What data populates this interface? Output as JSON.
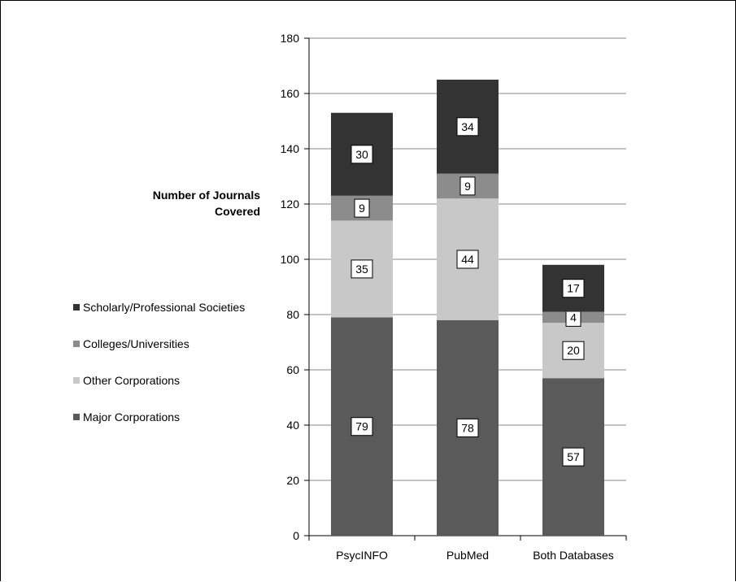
{
  "chart_data": {
    "type": "bar",
    "stacked": true,
    "categories": [
      "PsycINFO",
      "PubMed",
      "Both Databases"
    ],
    "series": [
      {
        "name": "Major Corporations",
        "values": [
          79,
          78,
          57
        ],
        "color": "#5a5a5a"
      },
      {
        "name": "Other Corporations",
        "values": [
          35,
          44,
          20
        ],
        "color": "#c8c8c8"
      },
      {
        "name": "Colleges/Universities",
        "values": [
          9,
          9,
          4
        ],
        "color": "#8c8c8c"
      },
      {
        "name": "Scholarly/Professional Societies",
        "values": [
          30,
          34,
          17
        ],
        "color": "#333333"
      }
    ],
    "ylabel": "Number of Journals Covered",
    "ylim": [
      0,
      180
    ],
    "yticks": [
      0,
      20,
      40,
      60,
      80,
      100,
      120,
      140,
      160,
      180
    ],
    "grid": true,
    "legend": "left"
  },
  "legend_order": [
    3,
    2,
    1,
    0
  ]
}
